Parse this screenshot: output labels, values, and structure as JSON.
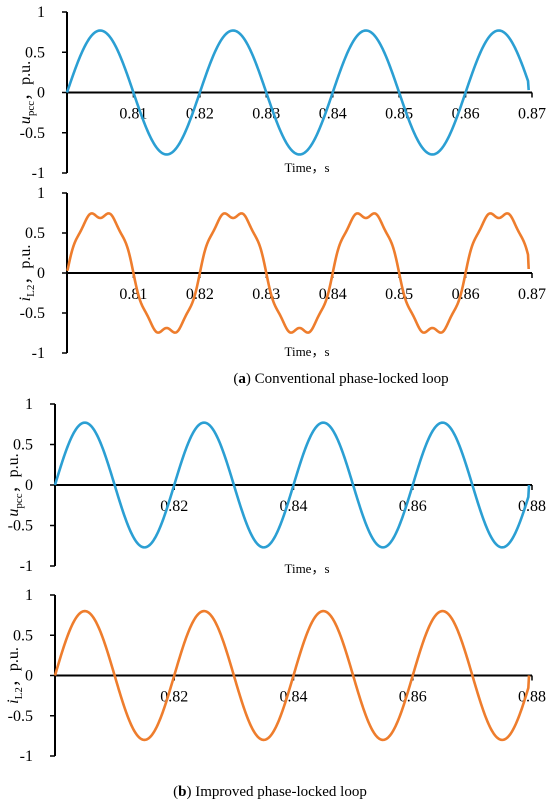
{
  "panels": [
    {
      "letter": "a",
      "caption": "Conventional phase-locked loop"
    },
    {
      "letter": "b",
      "caption": "Improved phase-locked loop"
    }
  ],
  "colors": {
    "voltage": "#2b9fd3",
    "current": "#ee7d2d",
    "axis": "#000000"
  },
  "chart_data": [
    {
      "type": "line",
      "panel": "a",
      "ylabel_main": "u",
      "ylabel_sub": "pcc",
      "ylabel_unit": "，p.u.",
      "xlabel": "Time，s",
      "xlim": [
        0.8,
        0.87
      ],
      "ylim": [
        -1,
        1
      ],
      "xticks": [
        "0.81",
        "0.82",
        "0.83",
        "0.84",
        "0.85",
        "0.86",
        "0.87"
      ],
      "yticks": [
        "1",
        "0.5",
        "0",
        "-0.5",
        "-1"
      ],
      "series": [
        {
          "color": "voltage",
          "frequency_hz": 50,
          "amplitude": 0.77,
          "phase_deg": 0,
          "x_end": 0.8695,
          "end_value": 0.03
        }
      ]
    },
    {
      "type": "line",
      "panel": "a",
      "ylabel_main": "i",
      "ylabel_sub": "L2",
      "ylabel_unit": "，p.u.",
      "xlabel": "Time，s",
      "xlim": [
        0.8,
        0.87
      ],
      "ylim": [
        -1,
        1
      ],
      "xticks": [
        "0.81",
        "0.82",
        "0.83",
        "0.84",
        "0.85",
        "0.86",
        "0.87"
      ],
      "yticks": [
        "1",
        "0.5",
        "0",
        "-0.5",
        "-1"
      ],
      "series": [
        {
          "color": "current",
          "frequency_hz": 50,
          "amplitude": 0.82,
          "phase_deg": 0,
          "distorted": true,
          "x_end": 0.8695,
          "start_value": 0.05,
          "end_value": 0.05
        }
      ]
    },
    {
      "type": "line",
      "panel": "b",
      "ylabel_main": "u",
      "ylabel_sub": "pcc",
      "ylabel_unit": "，p.u.",
      "xlabel": "Time，s",
      "xlim": [
        0.8,
        0.88
      ],
      "ylim": [
        -1,
        1
      ],
      "xticks": [
        "0.82",
        "0.84",
        "0.86",
        "0.88"
      ],
      "yticks": [
        "1",
        "0.5",
        "0",
        "-0.5",
        "-1"
      ],
      "series": [
        {
          "color": "voltage",
          "frequency_hz": 50,
          "amplitude": 0.77,
          "phase_deg": 0,
          "x_end": 0.8795,
          "end_value": 0.0
        }
      ]
    },
    {
      "type": "line",
      "panel": "b",
      "ylabel_main": "i",
      "ylabel_sub": "L2",
      "ylabel_unit": "，p.u.",
      "xlabel": "",
      "xlim": [
        0.8,
        0.88
      ],
      "ylim": [
        -1,
        1
      ],
      "xticks": [
        "0.82",
        "0.84",
        "0.86",
        "0.88"
      ],
      "yticks": [
        "1",
        "0.5",
        "0",
        "-0.5",
        "-1"
      ],
      "series": [
        {
          "color": "current",
          "frequency_hz": 50,
          "amplitude": 0.8,
          "phase_deg": 0,
          "x_end": 0.8795,
          "end_value": 0.0
        }
      ]
    }
  ]
}
